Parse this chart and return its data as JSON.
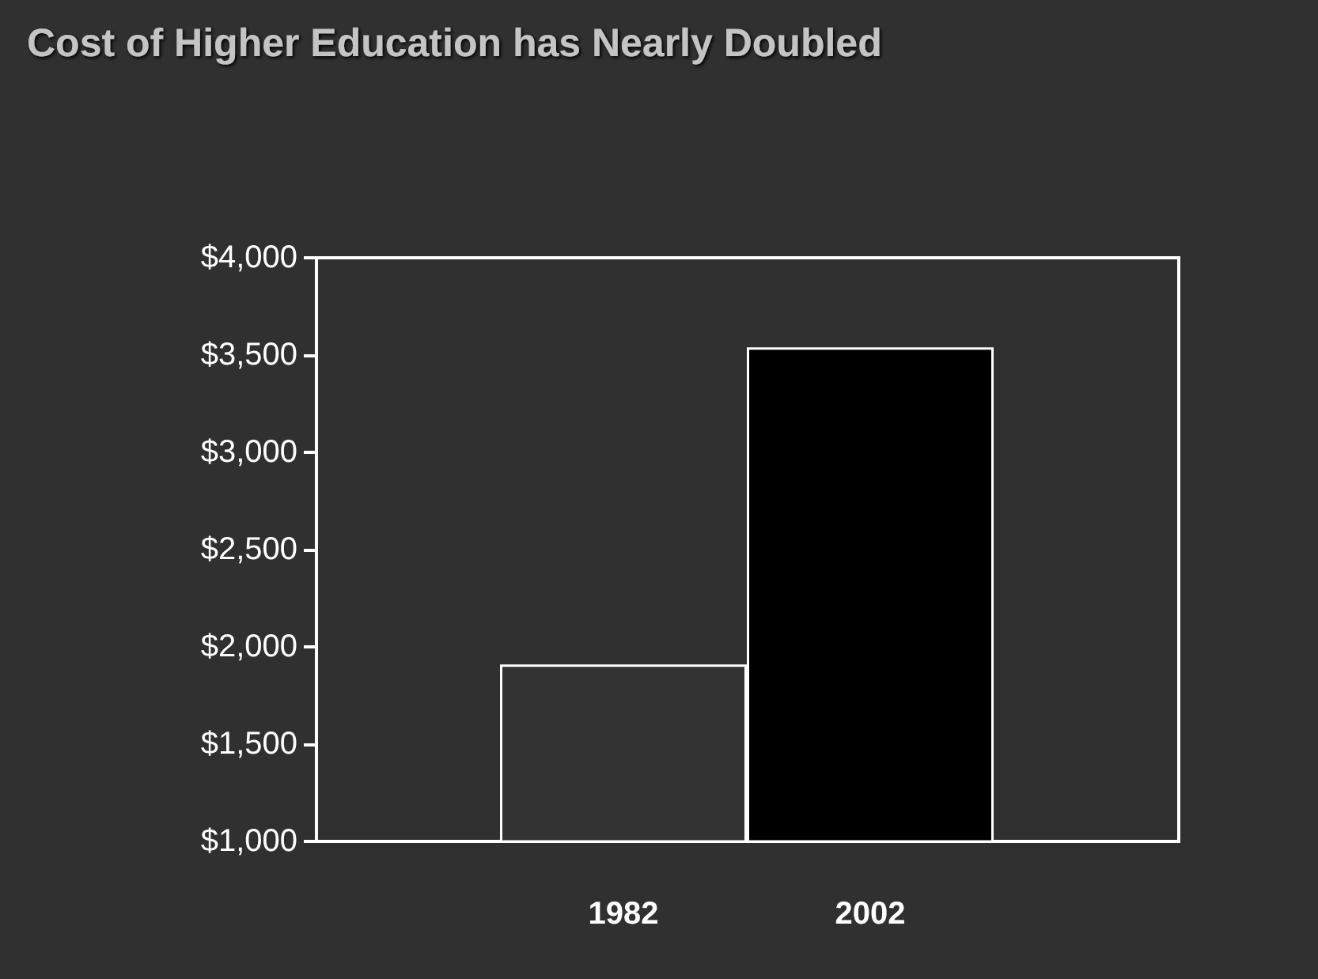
{
  "chart_data": {
    "type": "bar",
    "title": "Cost of Higher Education has Nearly Doubled",
    "categories": [
      "1982",
      "2002"
    ],
    "values": [
      1910,
      3540
    ],
    "colors": [
      "#333333",
      "#000000"
    ],
    "ylim": [
      1000,
      4000
    ],
    "yticks": [
      {
        "value": 1000,
        "label": "$1,000"
      },
      {
        "value": 1500,
        "label": "$1,500"
      },
      {
        "value": 2000,
        "label": "$2,000"
      },
      {
        "value": 2500,
        "label": "$2,500"
      },
      {
        "value": 3000,
        "label": "$3,000"
      },
      {
        "value": 3500,
        "label": "$3,500"
      },
      {
        "value": 4000,
        "label": "$4,000"
      }
    ],
    "grid": false
  }
}
